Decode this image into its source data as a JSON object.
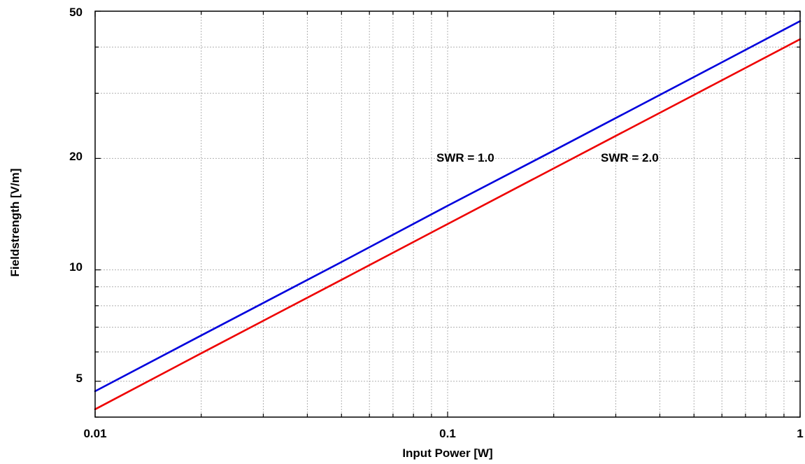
{
  "chart_data": {
    "type": "line",
    "title": "",
    "xlabel": "Input Power [W]",
    "ylabel": "Fieldstrength [V/m]",
    "xscale": "log",
    "yscale": "log",
    "xlim": [
      0.01,
      1
    ],
    "ylim": [
      4,
      50
    ],
    "grid": true,
    "x_ticks": [
      {
        "value": 0.01,
        "label": "0.01"
      },
      {
        "value": 0.1,
        "label": "0.1"
      },
      {
        "value": 1,
        "label": "1"
      }
    ],
    "y_ticks": [
      {
        "value": 5,
        "label": "5"
      },
      {
        "value": 10,
        "label": "10"
      },
      {
        "value": 20,
        "label": "20"
      },
      {
        "value": 50,
        "label": "50"
      }
    ],
    "series": [
      {
        "name": "SWR = 1.0",
        "color": "#0000dd",
        "x": [
          0.01,
          0.02,
          0.05,
          0.1,
          0.2,
          0.5,
          1
        ],
        "y": [
          4.7,
          6.65,
          10.5,
          14.9,
          21.0,
          33.2,
          47.0
        ]
      },
      {
        "name": "SWR = 2.0",
        "color": "#ee0000",
        "x": [
          0.01,
          0.02,
          0.05,
          0.1,
          0.2,
          0.5,
          1
        ],
        "y": [
          4.2,
          5.95,
          9.4,
          13.3,
          18.8,
          29.7,
          42.0
        ]
      }
    ]
  }
}
